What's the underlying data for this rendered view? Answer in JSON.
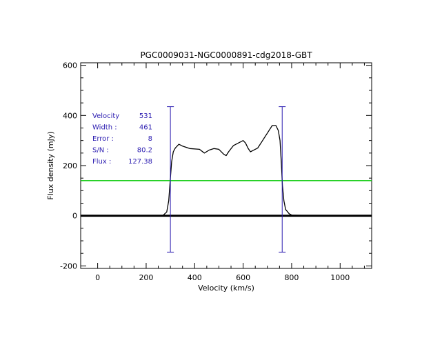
{
  "chart_data": {
    "type": "line",
    "title": "PGC0009031-NGC0000891-cdg2018-GBT",
    "xlabel": "Velocity (km/s)",
    "ylabel": "Flux density (mJy)",
    "xlim": [
      -70,
      1130
    ],
    "ylim": [
      -210,
      610
    ],
    "xticks": [
      0,
      200,
      400,
      600,
      800,
      1000
    ],
    "yticks": [
      -200,
      0,
      200,
      400,
      600
    ],
    "xtick_labels": [
      "0",
      "200",
      "400",
      "600",
      "800",
      "1000"
    ],
    "ytick_labels": [
      "-200",
      "0",
      "200",
      "400",
      "600"
    ],
    "grid": false,
    "series": [
      {
        "color": "#000000",
        "x": [
          -70,
          100,
          200,
          270,
          285,
          293,
          300,
          305,
          312,
          320,
          335,
          350,
          380,
          420,
          440,
          460,
          480,
          500,
          520,
          530,
          540,
          560,
          580,
          600,
          610,
          620,
          630,
          640,
          660,
          680,
          700,
          720,
          735,
          745,
          752,
          758,
          762,
          768,
          775,
          790,
          800,
          850,
          900,
          1000,
          1130
        ],
        "y": [
          2,
          1,
          1,
          2,
          15,
          60,
          150,
          215,
          255,
          270,
          285,
          278,
          268,
          265,
          250,
          262,
          268,
          265,
          245,
          240,
          255,
          280,
          290,
          300,
          290,
          270,
          255,
          260,
          270,
          300,
          330,
          360,
          360,
          340,
          300,
          200,
          120,
          60,
          25,
          8,
          3,
          1,
          1,
          1,
          2
        ]
      },
      {
        "color": "#00c800",
        "x": [
          -70,
          1130
        ],
        "y": [
          140,
          140
        ]
      }
    ],
    "markers": [
      {
        "x": 300,
        "y_top": 435,
        "y_bottom": -145,
        "color": "#2a1bb0"
      },
      {
        "x": 761,
        "y_top": 435,
        "y_bottom": -145,
        "color": "#2a1bb0"
      }
    ],
    "zero_line": {
      "y": 0,
      "color": "#000000"
    },
    "annotations": [
      {
        "label": "Velocity",
        "value": "531"
      },
      {
        "label": "Width :",
        "value": "461"
      },
      {
        "label": "Error :",
        "value": "8"
      },
      {
        "label": "S/N :",
        "value": "80.2"
      },
      {
        "label": "Flux :",
        "value": "127.38"
      }
    ],
    "annotation_color": "#2a1bb0"
  }
}
